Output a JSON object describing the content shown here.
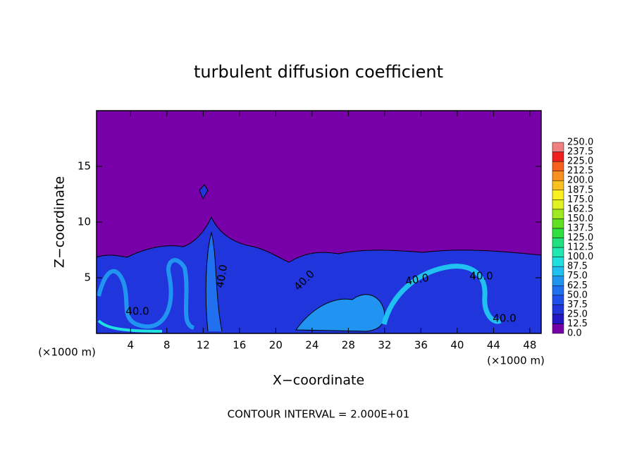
{
  "chart_data": {
    "type": "contour",
    "title": "turbulent diffusion coefficient",
    "xlabel": "X−coordinate",
    "ylabel": "Z−coordinate",
    "x_unit": "(×1000 m)",
    "x_unit_right": "(×1000 m)",
    "xlim": [
      0.25,
      49.25
    ],
    "ylim": [
      0,
      20
    ],
    "xticks": [
      4,
      8,
      12,
      16,
      20,
      24,
      28,
      32,
      36,
      40,
      44,
      48
    ],
    "yticks": [
      5,
      10,
      15
    ],
    "contour_labels": [
      "40.0",
      "40.0",
      "40.0",
      "40.0",
      "40.0",
      "40.0"
    ],
    "annotation": "CONTOUR INTERVAL = 2.000E+01",
    "colorbar": {
      "levels": [
        {
          "value": 0,
          "label": "0.0"
        },
        {
          "value": 12.5,
          "label": "12.5"
        },
        {
          "value": 25,
          "label": "25.0"
        },
        {
          "value": 37.5,
          "label": "37.5"
        },
        {
          "value": 50,
          "label": "50.0"
        },
        {
          "value": 62.5,
          "label": "62.5"
        },
        {
          "value": 75,
          "label": "75.0"
        },
        {
          "value": 87.5,
          "label": "87.5"
        },
        {
          "value": 100,
          "label": "100.0"
        },
        {
          "value": 112.5,
          "label": "112.5"
        },
        {
          "value": 125,
          "label": "125.0"
        },
        {
          "value": 137.5,
          "label": "137.5"
        },
        {
          "value": 150,
          "label": "150.0"
        },
        {
          "value": 162.5,
          "label": "162.5"
        },
        {
          "value": 175,
          "label": "175.0"
        },
        {
          "value": 187.5,
          "label": "187.5"
        },
        {
          "value": 200,
          "label": "200.0"
        },
        {
          "value": 212.5,
          "label": "212.5"
        },
        {
          "value": 225,
          "label": "225.0"
        },
        {
          "value": 237.5,
          "label": "237.5"
        },
        {
          "value": 250,
          "label": "250.0"
        }
      ],
      "colors": [
        "#7800a8",
        "#2418c4",
        "#2036dc",
        "#2050ec",
        "#2070f0",
        "#2094f0",
        "#20c0f0",
        "#20e0e0",
        "#20e8b0",
        "#20e080",
        "#30e040",
        "#60e020",
        "#a0e820",
        "#e0f020",
        "#f8f020",
        "#f8c020",
        "#f89020",
        "#f86020",
        "#f02020",
        "#f08080"
      ]
    }
  }
}
